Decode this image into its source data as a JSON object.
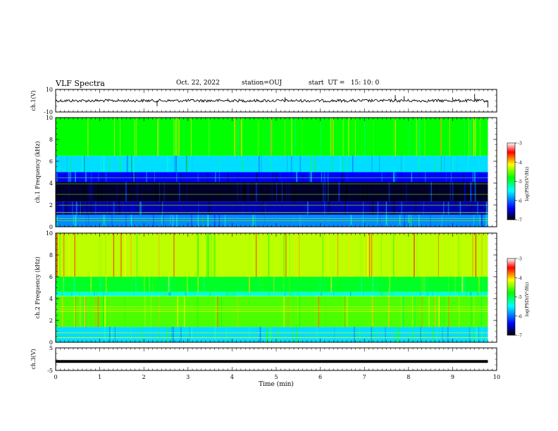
{
  "header": {
    "title": "VLF Spectra",
    "date": "Oct. 22, 2022",
    "station": "station=OUJ",
    "start": "start  UT =   15: 10: 0"
  },
  "colorbar": {
    "label": "log(PSD)(V²/Hz)",
    "ticks": [
      "-3",
      "-4",
      "-5",
      "-6",
      "-7"
    ],
    "colors": [
      "#000000",
      "#0000ff",
      "#00ffff",
      "#00ff00",
      "#ffff00",
      "#ff0000",
      "#ffffff"
    ]
  },
  "chart_data": [
    {
      "type": "line",
      "panel": "ch1-waveform",
      "ylabel": "ch.1(V)",
      "ylim": [
        -10,
        10
      ],
      "yticks": [
        "10",
        "-10"
      ],
      "x": [
        0,
        2.3,
        3.9,
        5.2,
        7.7,
        7.9,
        9.0,
        9.5,
        9.8
      ],
      "values": [
        -1,
        -5,
        2,
        3,
        5,
        4,
        3,
        6,
        -6
      ]
    },
    {
      "type": "heatmap",
      "panel": "ch1-spectrogram",
      "ylabel": "ch.1 Frequency (kHz)",
      "ylim": [
        0,
        10
      ],
      "yticks": [
        "10",
        "8",
        "6",
        "4",
        "2",
        "0"
      ],
      "xlim": [
        0,
        9.8
      ],
      "bands": [
        {
          "f0": 6.5,
          "f1": 10,
          "level": -4.8
        },
        {
          "f0": 5.0,
          "f1": 6.5,
          "level": -5.6
        },
        {
          "f0": 4.1,
          "f1": 5.0,
          "level": -6.4
        },
        {
          "f0": 2.3,
          "f1": 4.1,
          "level": -6.9
        },
        {
          "f0": 1.1,
          "f1": 2.3,
          "level": -6.6
        },
        {
          "f0": 0.0,
          "f1": 1.1,
          "level": -5.9
        }
      ]
    },
    {
      "type": "heatmap",
      "panel": "ch2-spectrogram",
      "ylabel": "ch.2 Frequency (kHz)",
      "ylim": [
        0,
        10
      ],
      "yticks": [
        "10",
        "8",
        "6",
        "4",
        "2",
        "0"
      ],
      "xlim": [
        0,
        9.8
      ],
      "bands": [
        {
          "f0": 6.0,
          "f1": 10,
          "level": -4.3
        },
        {
          "f0": 4.6,
          "f1": 6.0,
          "level": -4.9
        },
        {
          "f0": 4.2,
          "f1": 4.6,
          "level": -5.4
        },
        {
          "f0": 1.4,
          "f1": 4.2,
          "level": -4.6
        },
        {
          "f0": 0.0,
          "f1": 1.4,
          "level": -5.6
        }
      ]
    },
    {
      "type": "line",
      "panel": "ch3-waveform",
      "ylabel": "ch.3(V)",
      "ylim": [
        -5,
        5
      ],
      "yticks": [
        "5",
        "-5"
      ],
      "x": [
        0,
        9.8
      ],
      "values": [
        -1,
        -1
      ]
    }
  ],
  "xaxis": {
    "label": "Time (min)",
    "ticks": [
      "0",
      "1",
      "2",
      "3",
      "4",
      "5",
      "6",
      "7",
      "8",
      "9",
      "10"
    ],
    "xlim": [
      0,
      10
    ]
  }
}
